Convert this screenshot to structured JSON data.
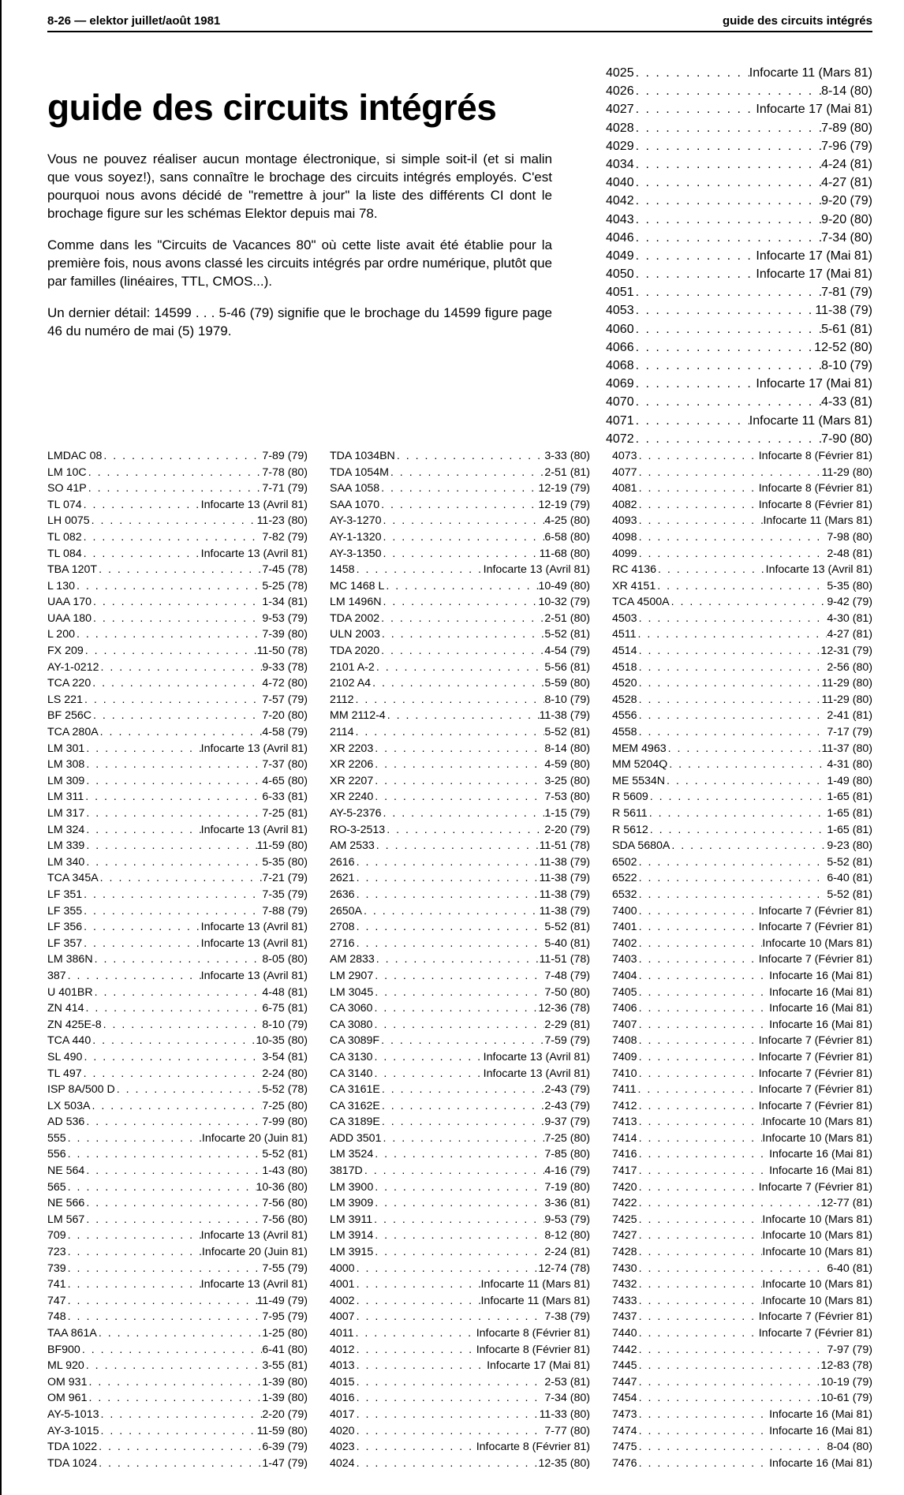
{
  "header_left": "8-26 — elektor juillet/août 1981",
  "header_right": "guide des circuits intégrés",
  "title": "guide des circuits intégrés",
  "intro": [
    "Vous ne pouvez réaliser aucun montage électronique, si simple soit-il (et si malin que vous soyez!), sans connaître le brochage des circuits intégrés employés. C'est pourquoi nous avons décidé de \"remettre à jour\" la liste des différents CI dont le brochage figure sur les schémas Elektor depuis mai 78.",
    "Comme dans les \"Circuits de Vacances 80\" où cette liste avait été établie pour la première fois, nous avons classé les circuits intégrés par ordre numérique, plutôt que par familles (linéaires, TTL, CMOS...).",
    "Un dernier détail: 14599 . . . 5-46 (79) signifie que le brochage du 14599 figure page 46 du numéro de mai (5) 1979."
  ],
  "col3_top": [
    {
      "p": "4025",
      "r": "Infocarte 11 (Mars 81)"
    },
    {
      "p": "4026",
      "r": "8-14 (80)"
    },
    {
      "p": "4027",
      "r": "Infocarte 17 (Mai 81)"
    },
    {
      "p": "4028",
      "r": "7-89 (80)"
    },
    {
      "p": "4029",
      "r": "7-96 (79)"
    },
    {
      "p": "4034",
      "r": "4-24 (81)"
    },
    {
      "p": "4040",
      "r": "4-27 (81)"
    },
    {
      "p": "4042",
      "r": "9-20 (79)"
    },
    {
      "p": "4043",
      "r": "9-20 (80)"
    },
    {
      "p": "4046",
      "r": "7-34 (80)"
    },
    {
      "p": "4049",
      "r": "Infocarte 17 (Mai 81)"
    },
    {
      "p": "4050",
      "r": "Infocarte 17 (Mai 81)"
    },
    {
      "p": "4051",
      "r": "7-81 (79)"
    },
    {
      "p": "4053",
      "r": "11-38 (79)"
    },
    {
      "p": "4060",
      "r": "5-61 (81)"
    },
    {
      "p": "4066",
      "r": "12-52 (80)"
    },
    {
      "p": "4068",
      "r": "8-10 (79)"
    },
    {
      "p": "4069",
      "r": "Infocarte 17 (Mai 81)"
    },
    {
      "p": "4070",
      "r": "4-33 (81)"
    },
    {
      "p": "4071",
      "r": "Infocarte 11 (Mars 81)"
    },
    {
      "p": "4072",
      "r": "7-90 (80)"
    }
  ],
  "col1": [
    {
      "p": "LMDAC 08",
      "r": "7-89 (79)"
    },
    {
      "p": "LM 10C",
      "r": "7-78 (80)"
    },
    {
      "p": "SO 41P",
      "r": "7-71 (79)"
    },
    {
      "p": "TL 074",
      "r": "Infocarte 13 (Avril 81)"
    },
    {
      "p": "LH 0075",
      "r": "11-23 (80)"
    },
    {
      "p": "TL 082",
      "r": "7-82 (79)"
    },
    {
      "p": "TL 084",
      "r": "Infocarte 13 (Avril 81)"
    },
    {
      "p": "TBA 120T",
      "r": "7-45 (78)"
    },
    {
      "p": "L 130",
      "r": "5-25 (78)"
    },
    {
      "p": "UAA 170",
      "r": "1-34 (81)"
    },
    {
      "p": "UAA 180",
      "r": "9-53 (79)"
    },
    {
      "p": "L 200",
      "r": "7-39 (80)"
    },
    {
      "p": "FX 209",
      "r": "11-50 (78)"
    },
    {
      "p": "AY-1-0212",
      "r": "9-33 (78)"
    },
    {
      "p": "TCA 220",
      "r": "4-72 (80)"
    },
    {
      "p": "LS 221",
      "r": "7-57 (79)"
    },
    {
      "p": "BF 256C",
      "r": "7-20 (80)"
    },
    {
      "p": "TCA 280A",
      "r": "4-58 (79)"
    },
    {
      "p": "LM 301",
      "r": "Infocarte 13 (Avril 81)"
    },
    {
      "p": "LM 308",
      "r": "7-37 (80)"
    },
    {
      "p": "LM 309",
      "r": "4-65 (80)"
    },
    {
      "p": "LM 311",
      "r": "6-33 (81)"
    },
    {
      "p": "LM 317",
      "r": "7-25 (81)"
    },
    {
      "p": "LM 324",
      "r": "Infocarte 13 (Avril 81)"
    },
    {
      "p": "LM 339",
      "r": "11-59 (80)"
    },
    {
      "p": "LM 340",
      "r": "5-35 (80)"
    },
    {
      "p": "TCA 345A",
      "r": "7-21 (79)"
    },
    {
      "p": "LF 351",
      "r": "7-35 (79)"
    },
    {
      "p": "LF 355",
      "r": "7-88 (79)"
    },
    {
      "p": "LF 356",
      "r": "Infocarte 13 (Avril 81)"
    },
    {
      "p": "LF 357",
      "r": "Infocarte 13 (Avril 81)"
    },
    {
      "p": "LM 386N",
      "r": "8-05 (80)"
    },
    {
      "p": "387",
      "r": "Infocarte 13 (Avril 81)"
    },
    {
      "p": "U 401BR",
      "r": "4-48 (81)"
    },
    {
      "p": "ZN 414",
      "r": "6-75 (81)"
    },
    {
      "p": "ZN 425E-8",
      "r": "8-10 (79)"
    },
    {
      "p": "TCA 440",
      "r": "10-35 (80)"
    },
    {
      "p": "SL 490",
      "r": "3-54 (81)"
    },
    {
      "p": "TL 497",
      "r": "2-24 (80)"
    },
    {
      "p": "ISP 8A/500 D",
      "r": "5-52 (78)"
    },
    {
      "p": "LX 503A",
      "r": "7-25 (80)"
    },
    {
      "p": "AD 536",
      "r": "7-99 (80)"
    },
    {
      "p": "555",
      "r": "Infocarte 20 (Juin 81)"
    },
    {
      "p": "556",
      "r": "5-52 (81)"
    },
    {
      "p": "NE 564",
      "r": "1-43 (80)"
    },
    {
      "p": "565",
      "r": "10-36 (80)"
    },
    {
      "p": "NE 566",
      "r": "7-56 (80)"
    },
    {
      "p": "LM 567",
      "r": "7-56 (80)"
    },
    {
      "p": "709",
      "r": "Infocarte 13 (Avril 81)"
    },
    {
      "p": "723",
      "r": "Infocarte 20 (Juin 81)"
    },
    {
      "p": "739",
      "r": "7-55 (79)"
    },
    {
      "p": "741",
      "r": "Infocarte 13 (Avril 81)"
    },
    {
      "p": "747",
      "r": "11-49 (79)"
    },
    {
      "p": "748",
      "r": "7-95 (79)"
    },
    {
      "p": "TAA 861A",
      "r": "1-25 (80)"
    },
    {
      "p": "BF900",
      "r": "6-41 (80)"
    },
    {
      "p": "ML 920",
      "r": "3-55 (81)"
    },
    {
      "p": "OM 931",
      "r": "1-39 (80)"
    },
    {
      "p": "OM 961",
      "r": "1-39 (80)"
    },
    {
      "p": "AY-5-1013",
      "r": "2-20 (79)"
    },
    {
      "p": "AY-3-1015",
      "r": "11-59 (80)"
    },
    {
      "p": "TDA 1022",
      "r": "6-39 (79)"
    },
    {
      "p": "TDA 1024",
      "r": "1-47 (79)"
    }
  ],
  "col2": [
    {
      "p": "TDA 1034BN",
      "r": "3-33 (80)"
    },
    {
      "p": "TDA 1054M",
      "r": "2-51 (81)"
    },
    {
      "p": "SAA 1058",
      "r": "12-19 (79)"
    },
    {
      "p": "SAA 1070",
      "r": "12-19 (79)"
    },
    {
      "p": "AY-3-1270",
      "r": "4-25 (80)"
    },
    {
      "p": "AY-1-1320",
      "r": "6-58 (80)"
    },
    {
      "p": "AY-3-1350",
      "r": "11-68 (80)"
    },
    {
      "p": "1458",
      "r": "Infocarte 13 (Avril 81)"
    },
    {
      "p": "MC 1468 L",
      "r": "10-49 (80)"
    },
    {
      "p": "LM 1496N",
      "r": "10-32 (79)"
    },
    {
      "p": "TDA 2002",
      "r": "2-51 (80)"
    },
    {
      "p": "ULN 2003",
      "r": "5-52 (81)"
    },
    {
      "p": "TDA 2020",
      "r": "4-54 (79)"
    },
    {
      "p": "2101 A-2",
      "r": "5-56 (81)"
    },
    {
      "p": "2102 A4",
      "r": "5-59 (80)"
    },
    {
      "p": "2112",
      "r": "8-10 (79)"
    },
    {
      "p": "MM 2112-4",
      "r": "11-38 (79)"
    },
    {
      "p": "2114",
      "r": "5-52 (81)"
    },
    {
      "p": "XR 2203",
      "r": "8-14 (80)"
    },
    {
      "p": "XR 2206",
      "r": "4-59 (80)"
    },
    {
      "p": "XR 2207",
      "r": "3-25 (80)"
    },
    {
      "p": "XR 2240",
      "r": "7-53 (80)"
    },
    {
      "p": "AY-5-2376",
      "r": "1-15 (79)"
    },
    {
      "p": "RO-3-2513",
      "r": "2-20 (79)"
    },
    {
      "p": "AM 2533",
      "r": "11-51 (78)"
    },
    {
      "p": "2616",
      "r": "11-38 (79)"
    },
    {
      "p": "2621",
      "r": "11-38 (79)"
    },
    {
      "p": "2636",
      "r": "11-38 (79)"
    },
    {
      "p": "2650A",
      "r": "11-38 (79)"
    },
    {
      "p": "2708",
      "r": "5-52 (81)"
    },
    {
      "p": "2716",
      "r": "5-40 (81)"
    },
    {
      "p": "AM 2833",
      "r": "11-51 (78)"
    },
    {
      "p": "LM 2907",
      "r": "7-48 (79)"
    },
    {
      "p": "LM 3045",
      "r": "7-50 (80)"
    },
    {
      "p": "CA 3060",
      "r": "12-36 (78)"
    },
    {
      "p": "CA 3080",
      "r": "2-29 (81)"
    },
    {
      "p": "CA 3089F",
      "r": "7-59 (79)"
    },
    {
      "p": "CA 3130",
      "r": "Infocarte 13 (Avril 81)"
    },
    {
      "p": "CA 3140",
      "r": "Infocarte 13 (Avril 81)"
    },
    {
      "p": "CA 3161E",
      "r": "2-43 (79)"
    },
    {
      "p": "CA 3162E",
      "r": "2-43 (79)"
    },
    {
      "p": "CA 3189E",
      "r": "9-37 (79)"
    },
    {
      "p": "ADD 3501",
      "r": "7-25 (80)"
    },
    {
      "p": "LM 3524",
      "r": "7-85 (80)"
    },
    {
      "p": "3817D",
      "r": "4-16 (79)"
    },
    {
      "p": "LM 3900",
      "r": "7-19 (80)"
    },
    {
      "p": "LM 3909",
      "r": "3-36 (81)"
    },
    {
      "p": "LM 3911",
      "r": "9-53 (79)"
    },
    {
      "p": "LM 3914",
      "r": "8-12 (80)"
    },
    {
      "p": "LM 3915",
      "r": "2-24 (81)"
    },
    {
      "p": "4000",
      "r": "12-74 (78)"
    },
    {
      "p": "4001",
      "r": "Infocarte 11 (Mars 81)"
    },
    {
      "p": "4002",
      "r": "Infocarte 11 (Mars 81)"
    },
    {
      "p": "4007",
      "r": "7-38 (79)"
    },
    {
      "p": "4011",
      "r": "Infocarte 8 (Février 81)"
    },
    {
      "p": "4012",
      "r": "Infocarte 8 (Février 81)"
    },
    {
      "p": "4013",
      "r": "Infocarte 17 (Mai 81)"
    },
    {
      "p": "4015",
      "r": "2-53 (81)"
    },
    {
      "p": "4016",
      "r": "7-34 (80)"
    },
    {
      "p": "4017",
      "r": "11-33 (80)"
    },
    {
      "p": "4020",
      "r": "7-77 (80)"
    },
    {
      "p": "4023",
      "r": "Infocarte 8 (Février 81)"
    },
    {
      "p": "4024",
      "r": "12-35 (80)"
    }
  ],
  "col3": [
    {
      "p": "4073",
      "r": "Infocarte 8 (Février 81)"
    },
    {
      "p": "4077",
      "r": "11-29 (80)"
    },
    {
      "p": "4081",
      "r": "Infocarte 8 (Février 81)"
    },
    {
      "p": "4082",
      "r": "Infocarte 8 (Février 81)"
    },
    {
      "p": "4093",
      "r": "Infocarte 11 (Mars 81)"
    },
    {
      "p": "4098",
      "r": "7-98 (80)"
    },
    {
      "p": "4099",
      "r": "2-48 (81)"
    },
    {
      "p": "RC 4136",
      "r": "Infocarte 13 (Avril 81)"
    },
    {
      "p": "XR 4151",
      "r": "5-35 (80)"
    },
    {
      "p": "TCA 4500A",
      "r": "9-42 (79)"
    },
    {
      "p": "4503",
      "r": "4-30 (81)"
    },
    {
      "p": "4511",
      "r": "4-27 (81)"
    },
    {
      "p": "4514",
      "r": "12-31 (79)"
    },
    {
      "p": "4518",
      "r": "2-56 (80)"
    },
    {
      "p": "4520",
      "r": "11-29 (80)"
    },
    {
      "p": "4528",
      "r": "11-29 (80)"
    },
    {
      "p": "4556",
      "r": "2-41 (81)"
    },
    {
      "p": "4558",
      "r": "7-17 (79)"
    },
    {
      "p": "MEM 4963",
      "r": "11-37 (80)"
    },
    {
      "p": "MM 5204Q",
      "r": "4-31 (80)"
    },
    {
      "p": "ME 5534N",
      "r": "1-49 (80)"
    },
    {
      "p": "R 5609",
      "r": "1-65 (81)"
    },
    {
      "p": "R 5611",
      "r": "1-65 (81)"
    },
    {
      "p": "R 5612",
      "r": "1-65 (81)"
    },
    {
      "p": "SDA 5680A",
      "r": "9-23 (80)"
    },
    {
      "p": "6502",
      "r": "5-52 (81)"
    },
    {
      "p": "6522",
      "r": "6-40 (81)"
    },
    {
      "p": "6532",
      "r": "5-52 (81)"
    },
    {
      "p": "7400",
      "r": "Infocarte 7 (Février 81)"
    },
    {
      "p": "7401",
      "r": "Infocarte 7 (Février 81)"
    },
    {
      "p": "7402",
      "r": "Infocarte 10 (Mars 81)"
    },
    {
      "p": "7403",
      "r": "Infocarte 7 (Février 81)"
    },
    {
      "p": "7404",
      "r": "Infocarte 16 (Mai 81)"
    },
    {
      "p": "7405",
      "r": "Infocarte 16 (Mai 81)"
    },
    {
      "p": "7406",
      "r": "Infocarte 16 (Mai 81)"
    },
    {
      "p": "7407",
      "r": "Infocarte 16 (Mai 81)"
    },
    {
      "p": "7408",
      "r": "Infocarte 7 (Février 81)"
    },
    {
      "p": "7409",
      "r": "Infocarte 7 (Février 81)"
    },
    {
      "p": "7410",
      "r": "Infocarte 7 (Février 81)"
    },
    {
      "p": "7411",
      "r": "Infocarte 7 (Février 81)"
    },
    {
      "p": "7412",
      "r": "Infocarte 7 (Février 81)"
    },
    {
      "p": "7413",
      "r": "Infocarte 10 (Mars 81)"
    },
    {
      "p": "7414",
      "r": "Infocarte 10 (Mars 81)"
    },
    {
      "p": "7416",
      "r": "Infocarte 16 (Mai 81)"
    },
    {
      "p": "7417",
      "r": "Infocarte 16 (Mai 81)"
    },
    {
      "p": "7420",
      "r": "Infocarte 7 (Février 81)"
    },
    {
      "p": "7422",
      "r": "12-77 (81)"
    },
    {
      "p": "7425",
      "r": "Infocarte 10 (Mars 81)"
    },
    {
      "p": "7427",
      "r": "Infocarte 10 (Mars 81)"
    },
    {
      "p": "7428",
      "r": "Infocarte 10 (Mars 81)"
    },
    {
      "p": "7430",
      "r": "6-40 (81)"
    },
    {
      "p": "7432",
      "r": "Infocarte 10 (Mars 81)"
    },
    {
      "p": "7433",
      "r": "Infocarte 10 (Mars 81)"
    },
    {
      "p": "7437",
      "r": "Infocarte 7 (Février 81)"
    },
    {
      "p": "7440",
      "r": "Infocarte 7 (Février 81)"
    },
    {
      "p": "7442",
      "r": "7-97 (79)"
    },
    {
      "p": "7445",
      "r": "12-83 (78)"
    },
    {
      "p": "7447",
      "r": "10-19 (79)"
    },
    {
      "p": "7454",
      "r": "10-61 (79)"
    },
    {
      "p": "7473",
      "r": "Infocarte 16 (Mai 81)"
    },
    {
      "p": "7474",
      "r": "Infocarte 16 (Mai 81)"
    },
    {
      "p": "7475",
      "r": "8-04 (80)"
    },
    {
      "p": "7476",
      "r": "Infocarte 16 (Mai 81)"
    }
  ]
}
